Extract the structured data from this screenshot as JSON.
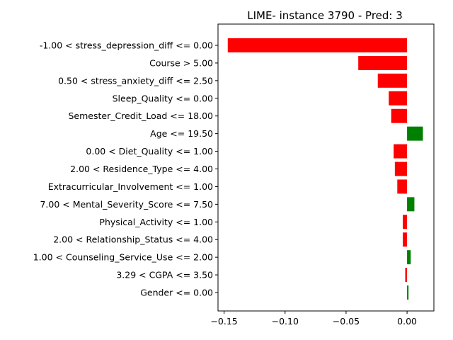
{
  "chart_data": {
    "type": "bar",
    "orientation": "horizontal",
    "title": "LIME- instance 3790 - Pred: 3",
    "xlabel": "",
    "ylabel": "",
    "xlim": [
      -0.155,
      0.022
    ],
    "xticks": [
      -0.15,
      -0.1,
      -0.05,
      0.0
    ],
    "xtick_labels": [
      "−0.15",
      "−0.10",
      "−0.05",
      "0.00"
    ],
    "grid": false,
    "positive_color": "#008000",
    "negative_color": "#ff0000",
    "categories": [
      "-1.00 < stress_depression_diff <= 0.00",
      "Course > 5.00",
      "0.50 < stress_anxiety_diff <= 2.50",
      "Sleep_Quality <= 0.00",
      "Semester_Credit_Load <= 18.00",
      "Age <= 19.50",
      "0.00 < Diet_Quality <= 1.00",
      "2.00 < Residence_Type <= 4.00",
      "Extracurricular_Involvement <= 1.00",
      "7.00 < Mental_Severity_Score <= 7.50",
      "Physical_Activity <= 1.00",
      "2.00 < Relationship_Status <= 4.00",
      "1.00 < Counseling_Service_Use <= 2.00",
      "3.29 < CGPA <= 3.50",
      "Gender <= 0.00"
    ],
    "values": [
      -0.147,
      -0.04,
      -0.024,
      -0.015,
      -0.013,
      0.013,
      -0.011,
      -0.01,
      -0.008,
      0.006,
      -0.0035,
      -0.0035,
      0.003,
      -0.0015,
      0.0012
    ]
  }
}
